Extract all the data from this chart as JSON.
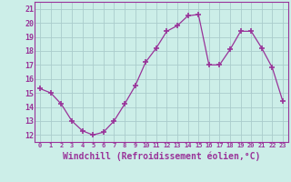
{
  "x": [
    0,
    1,
    2,
    3,
    4,
    5,
    6,
    7,
    8,
    9,
    10,
    11,
    12,
    13,
    14,
    15,
    16,
    17,
    18,
    19,
    20,
    21,
    22,
    23
  ],
  "y": [
    15.3,
    15.0,
    14.2,
    13.0,
    12.3,
    12.0,
    12.2,
    13.0,
    14.2,
    15.5,
    17.2,
    18.2,
    19.4,
    19.8,
    20.5,
    20.6,
    17.0,
    17.0,
    18.1,
    19.4,
    19.4,
    18.2,
    16.8,
    14.4
  ],
  "line_color": "#993399",
  "marker": "+",
  "marker_size": 4,
  "bg_color": "#cceee8",
  "grid_color": "#aacccc",
  "xlabel": "Windchill (Refroidissement éolien,°C)",
  "xlabel_fontsize": 7,
  "ylabel_ticks": [
    12,
    13,
    14,
    15,
    16,
    17,
    18,
    19,
    20,
    21
  ],
  "xlim": [
    -0.5,
    23.5
  ],
  "ylim": [
    11.5,
    21.5
  ],
  "xtick_labels": [
    "0",
    "1",
    "2",
    "3",
    "4",
    "5",
    "6",
    "7",
    "8",
    "9",
    "10",
    "11",
    "12",
    "13",
    "14",
    "15",
    "16",
    "17",
    "18",
    "19",
    "20",
    "21",
    "22",
    "23"
  ]
}
